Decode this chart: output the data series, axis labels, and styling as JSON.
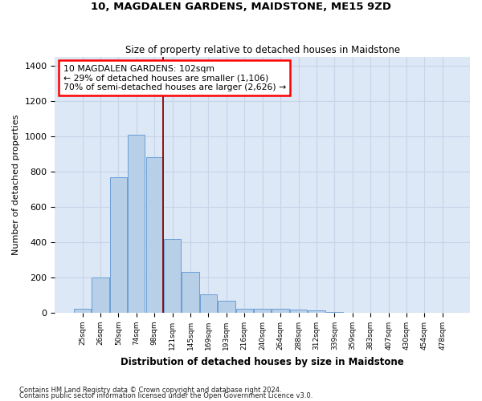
{
  "title": "10, MAGDALEN GARDENS, MAIDSTONE, ME15 9ZD",
  "subtitle": "Size of property relative to detached houses in Maidstone",
  "xlabel": "Distribution of detached houses by size in Maidstone",
  "ylabel": "Number of detached properties",
  "bar_labels": [
    "25sqm",
    "26sqm",
    "50sqm",
    "74sqm",
    "98sqm",
    "121sqm",
    "145sqm",
    "169sqm",
    "193sqm",
    "216sqm",
    "240sqm",
    "264sqm",
    "288sqm",
    "312sqm",
    "339sqm",
    "359sqm",
    "383sqm",
    "407sqm",
    "430sqm",
    "454sqm",
    "478sqm"
  ],
  "bar_values": [
    25,
    200,
    770,
    1010,
    880,
    420,
    230,
    105,
    70,
    25,
    25,
    25,
    20,
    12,
    5,
    0,
    0,
    0,
    0,
    0,
    0
  ],
  "bar_color": "#b8cfe8",
  "bar_edge_color": "#6a9fd8",
  "grid_color": "#c8d4e8",
  "background_color": "#dce8f5",
  "annotation_text": "10 MAGDALEN GARDENS: 102sqm\n← 29% of detached houses are smaller (1,106)\n70% of semi-detached houses are larger (2,626) →",
  "vline_x": 4.5,
  "vline_color": "#8b0000",
  "ylim": [
    0,
    1450
  ],
  "yticks": [
    0,
    200,
    400,
    600,
    800,
    1000,
    1200,
    1400
  ],
  "footer1": "Contains HM Land Registry data © Crown copyright and database right 2024.",
  "footer2": "Contains public sector information licensed under the Open Government Licence v3.0."
}
